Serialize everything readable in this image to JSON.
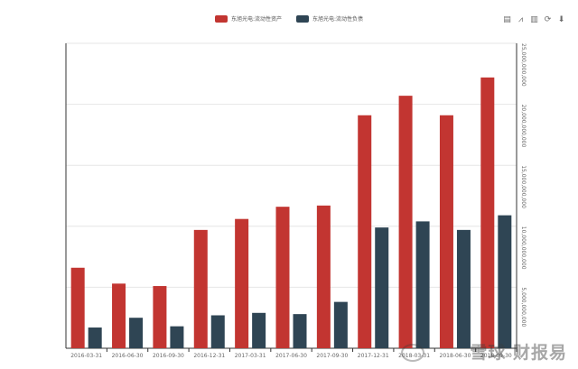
{
  "legend": {
    "series_a": "东旭光电:流动性资产",
    "series_b": "东旭光电:流动性负债"
  },
  "toolbox": {
    "data_view_icon": "data-view-icon",
    "line_switch_icon": "line-switch-icon",
    "bar_switch_icon": "bar-switch-icon",
    "restore_icon": "restore-icon",
    "save_icon": "save-image-icon"
  },
  "watermark": "雪球 财报易",
  "colors": {
    "series_a": "#c23531",
    "series_b": "#2f4554",
    "axis": "#333333",
    "grid": "#e6e6e6",
    "tick_text": "#666666"
  },
  "chart_data": {
    "type": "bar",
    "categories": [
      "2016-03-31",
      "2016-06-30",
      "2016-09-30",
      "2016-12-31",
      "2017-03-31",
      "2017-06-30",
      "2017-09-30",
      "2017-12-31",
      "2018-03-31",
      "2018-06-30",
      "2018-09-30"
    ],
    "series": [
      {
        "name": "东旭光电:流动性资产",
        "values": [
          6600000000,
          5300000000,
          5100000000,
          9700000000,
          10600000000,
          11600000000,
          11700000000,
          19100000000,
          20700000000,
          19100000000,
          22200000000
        ]
      },
      {
        "name": "东旭光电:流动性负债",
        "values": [
          1700000000,
          2500000000,
          1800000000,
          2700000000,
          2900000000,
          2800000000,
          3800000000,
          9900000000,
          10400000000,
          9700000000,
          10900000000
        ]
      }
    ],
    "yticks": [
      "5,000,000,000",
      "10,000,000,000",
      "15,000,000,000",
      "20,000,000,000",
      "25,000,000,000"
    ],
    "ylim": [
      0,
      25000000000
    ],
    "y_axis_position": "right",
    "grid": true,
    "legend_position": "top-center"
  }
}
